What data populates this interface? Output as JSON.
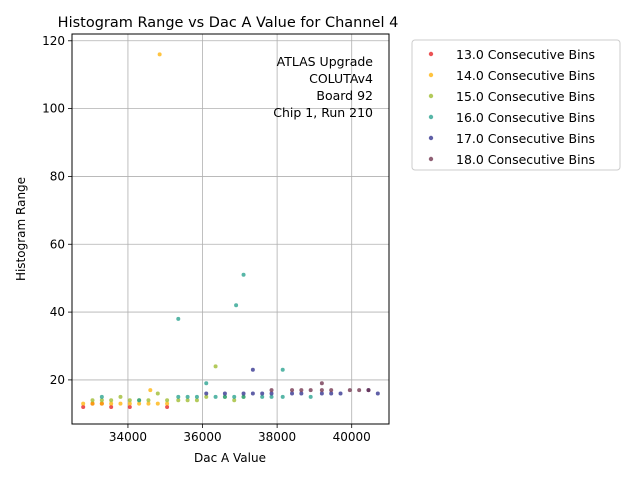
{
  "chart_data": {
    "type": "scatter",
    "title": "Histogram Range vs Dac A Value for Channel 4",
    "xlabel": "Dac A Value",
    "ylabel": "Histogram Range",
    "xlim": [
      32500,
      41000
    ],
    "ylim": [
      7,
      122
    ],
    "xticks": [
      34000,
      36000,
      38000,
      40000
    ],
    "xtick_labels": [
      "34000",
      "36000",
      "38000",
      "40000"
    ],
    "yticks": [
      20,
      40,
      60,
      80,
      100,
      120
    ],
    "ytick_labels": [
      "20",
      "40",
      "60",
      "80",
      "100",
      "120"
    ],
    "grid": true,
    "legend_position": "outside-right",
    "annotation": [
      "ATLAS Upgrade",
      "COLUTAv4",
      "Board 92",
      "Chip 1, Run 210"
    ],
    "series": [
      {
        "name": "13.0 Consecutive Bins",
        "color": "#e41a1c",
        "x": [
          32800,
          33050,
          33300,
          33550,
          34050,
          35050
        ],
        "y": [
          12,
          13,
          13,
          12,
          12,
          12
        ]
      },
      {
        "name": "14.0 Consecutive Bins",
        "color": "#ffb000",
        "x": [
          32800,
          33050,
          33300,
          33550,
          33800,
          34050,
          34300,
          34550,
          34600,
          34800,
          34850,
          35050
        ],
        "y": [
          13,
          13,
          13,
          13,
          13,
          13,
          13,
          13,
          17,
          13,
          116,
          13
        ]
      },
      {
        "name": "15.0 Consecutive Bins",
        "color": "#9ab826",
        "x": [
          33050,
          33300,
          33550,
          33800,
          34050,
          34300,
          34550,
          34800,
          35050,
          35350,
          35600,
          35850,
          36100,
          36350,
          36600,
          36850,
          37100
        ],
        "y": [
          14,
          14,
          14,
          15,
          14,
          14,
          14,
          16,
          14,
          14,
          14,
          14,
          15,
          24,
          15,
          14,
          15
        ]
      },
      {
        "name": "16.0 Consecutive Bins",
        "color": "#1f9e89",
        "x": [
          33300,
          34300,
          35350,
          35350,
          35600,
          35850,
          36100,
          36350,
          36600,
          36850,
          36900,
          37100,
          37100,
          37600,
          37850,
          38150,
          38150,
          38900
        ],
        "y": [
          15,
          14,
          15,
          38,
          15,
          15,
          19,
          15,
          15,
          15,
          42,
          15,
          51,
          15,
          15,
          23,
          15,
          15
        ]
      },
      {
        "name": "17.0 Consecutive Bins",
        "color": "#2a2a8a",
        "x": [
          36100,
          36600,
          37100,
          37350,
          37350,
          37600,
          37850,
          38400,
          38650,
          39200,
          39450,
          39700,
          40450,
          40700
        ],
        "y": [
          16,
          16,
          16,
          23,
          16,
          16,
          16,
          16,
          16,
          16,
          16,
          16,
          17,
          16
        ]
      },
      {
        "name": "18.0 Consecutive Bins",
        "color": "#6b2b47",
        "x": [
          37850,
          38400,
          38650,
          38900,
          39200,
          39200,
          39450,
          39950,
          40200,
          40450
        ],
        "y": [
          17,
          17,
          17,
          17,
          17,
          19,
          17,
          17,
          17,
          17
        ]
      }
    ]
  }
}
